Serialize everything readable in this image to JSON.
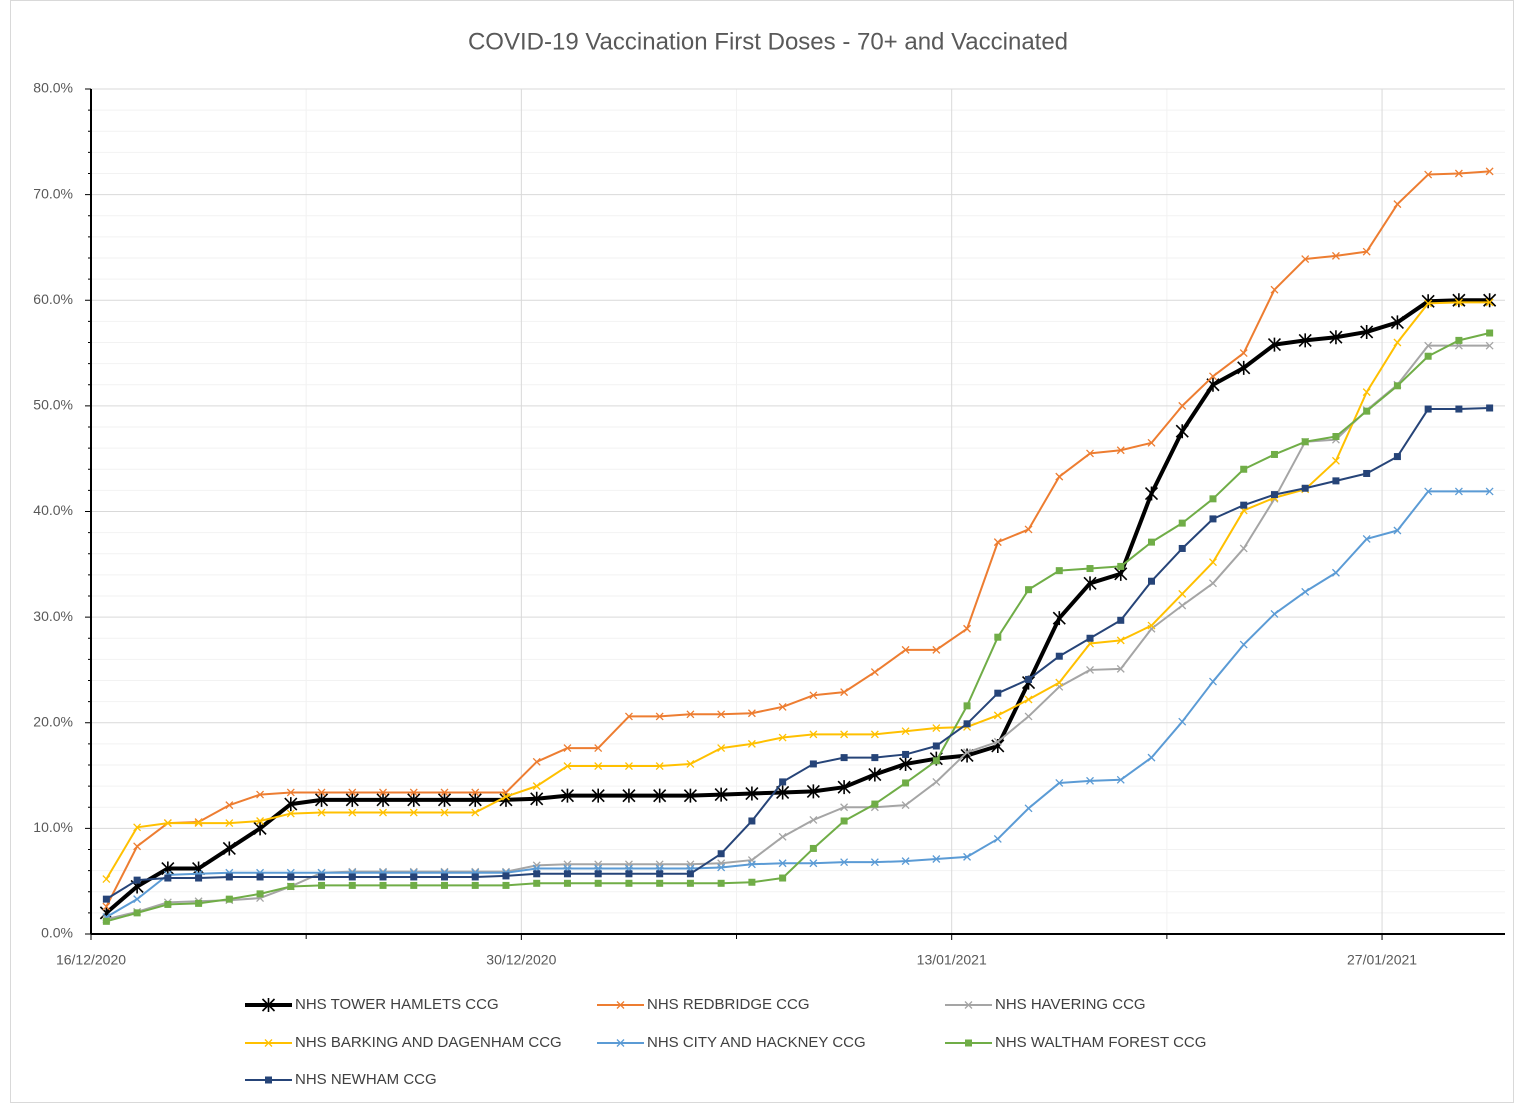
{
  "chart_data": {
    "type": "line",
    "title": "COVID-19 Vaccination First Doses - 70+ and Vaccinated",
    "x": [
      "16/12/2020",
      "17/12/2020",
      "18/12/2020",
      "19/12/2020",
      "20/12/2020",
      "21/12/2020",
      "22/12/2020",
      "23/12/2020",
      "24/12/2020",
      "25/12/2020",
      "26/12/2020",
      "27/12/2020",
      "28/12/2020",
      "29/12/2020",
      "30/12/2020",
      "31/12/2020",
      "01/01/2021",
      "02/01/2021",
      "03/01/2021",
      "04/01/2021",
      "05/01/2021",
      "06/01/2021",
      "07/01/2021",
      "08/01/2021",
      "09/01/2021",
      "10/01/2021",
      "11/01/2021",
      "12/01/2021",
      "13/01/2021",
      "14/01/2021",
      "15/01/2021",
      "16/01/2021",
      "17/01/2021",
      "18/01/2021",
      "19/01/2021",
      "20/01/2021",
      "21/01/2021",
      "22/01/2021",
      "23/01/2021",
      "24/01/2021",
      "25/01/2021",
      "26/01/2021",
      "27/01/2021",
      "28/01/2021",
      "29/01/2021",
      "30/01/2021"
    ],
    "xlim": [
      "16/12/2020",
      "31/01/2021"
    ],
    "xticks": [
      "16/12/2020",
      "30/12/2020",
      "13/01/2021",
      "27/01/2021"
    ],
    "xminorticks": [
      "23/12/2020",
      "06/01/2021",
      "20/01/2021"
    ],
    "ylim": [
      0,
      80
    ],
    "yticks": [
      {
        "value": 0,
        "label": "0.0%"
      },
      {
        "value": 10,
        "label": "10.0%"
      },
      {
        "value": 20,
        "label": "20.0%"
      },
      {
        "value": 30,
        "label": "30.0%"
      },
      {
        "value": 40,
        "label": "40.0%"
      },
      {
        "value": 50,
        "label": "50.0%"
      },
      {
        "value": 60,
        "label": "60.0%"
      },
      {
        "value": 70,
        "label": "70.0%"
      },
      {
        "value": 80,
        "label": "80.0%"
      }
    ],
    "yminorticks": [
      2,
      4,
      6,
      8,
      12,
      14,
      16,
      18,
      22,
      24,
      26,
      28,
      32,
      34,
      36,
      38,
      42,
      44,
      46,
      48,
      52,
      54,
      56,
      58,
      62,
      64,
      66,
      68,
      72,
      74,
      76,
      78
    ],
    "grid": true,
    "legend": "bottom",
    "series": [
      {
        "name": "NHS TOWER HAMLETS CCG",
        "color": "#000000",
        "marker": "star",
        "width": 4,
        "values": [
          2.0,
          4.5,
          6.2,
          6.2,
          8.1,
          10.0,
          12.3,
          12.7,
          12.7,
          12.7,
          12.7,
          12.7,
          12.7,
          12.7,
          12.8,
          13.1,
          13.1,
          13.1,
          13.1,
          13.1,
          13.2,
          13.3,
          13.4,
          13.5,
          13.9,
          15.1,
          16.1,
          16.6,
          16.9,
          17.8,
          23.8,
          29.9,
          33.2,
          34.1,
          41.7,
          47.6,
          52.0,
          53.6,
          55.8,
          56.2,
          56.5,
          57.0,
          57.9,
          59.9,
          60.0,
          60.0
        ]
      },
      {
        "name": "NHS REDBRIDGE CCG",
        "color": "#ED7D31",
        "marker": "x",
        "width": 2,
        "values": [
          2.6,
          8.3,
          10.5,
          10.6,
          12.2,
          13.2,
          13.4,
          13.4,
          13.4,
          13.4,
          13.4,
          13.4,
          13.4,
          13.4,
          16.3,
          17.6,
          17.6,
          20.6,
          20.6,
          20.8,
          20.8,
          20.9,
          21.5,
          22.6,
          22.9,
          24.8,
          26.9,
          26.9,
          28.9,
          37.1,
          38.3,
          43.3,
          45.5,
          45.8,
          46.5,
          50.0,
          52.8,
          55.0,
          61.0,
          63.9,
          64.2,
          64.6,
          69.1,
          71.9,
          72.0,
          72.2
        ]
      },
      {
        "name": "NHS HAVERING CCG",
        "color": "#A5A5A5",
        "marker": "x",
        "width": 2,
        "values": [
          1.4,
          2.1,
          3.0,
          3.1,
          3.2,
          3.4,
          4.5,
          5.8,
          5.9,
          5.9,
          5.9,
          5.9,
          5.9,
          5.9,
          6.5,
          6.6,
          6.6,
          6.6,
          6.6,
          6.6,
          6.7,
          7.0,
          9.2,
          10.8,
          12.0,
          12.0,
          12.2,
          14.4,
          17.2,
          18.2,
          20.6,
          23.4,
          25.0,
          25.1,
          28.9,
          31.1,
          33.2,
          36.5,
          41.2,
          46.6,
          46.8,
          49.6,
          52.0,
          55.7,
          55.7,
          55.7
        ]
      },
      {
        "name": "NHS BARKING AND DAGENHAM CCG",
        "color": "#FFC000",
        "marker": "x",
        "width": 2,
        "values": [
          5.2,
          10.1,
          10.5,
          10.5,
          10.5,
          10.7,
          11.4,
          11.5,
          11.5,
          11.5,
          11.5,
          11.5,
          11.5,
          13.0,
          14.0,
          15.9,
          15.9,
          15.9,
          15.9,
          16.1,
          17.6,
          18.0,
          18.6,
          18.9,
          18.9,
          18.9,
          19.2,
          19.5,
          19.6,
          20.7,
          22.2,
          23.8,
          27.5,
          27.8,
          29.2,
          32.2,
          35.2,
          40.1,
          41.3,
          42.1,
          44.8,
          51.3,
          56.0,
          59.7,
          59.8,
          59.8
        ]
      },
      {
        "name": "NHS CITY AND HACKNEY CCG",
        "color": "#5B9BD5",
        "marker": "x",
        "width": 2,
        "values": [
          1.6,
          3.3,
          5.6,
          5.7,
          5.8,
          5.8,
          5.8,
          5.8,
          5.8,
          5.8,
          5.8,
          5.8,
          5.8,
          5.8,
          6.2,
          6.2,
          6.2,
          6.2,
          6.2,
          6.2,
          6.3,
          6.6,
          6.7,
          6.7,
          6.8,
          6.8,
          6.9,
          7.1,
          7.3,
          9.0,
          11.9,
          14.3,
          14.5,
          14.6,
          16.7,
          20.1,
          23.9,
          27.4,
          30.3,
          32.4,
          34.2,
          37.4,
          38.2,
          41.9,
          41.9,
          41.9
        ]
      },
      {
        "name": "NHS WALTHAM FOREST CCG",
        "color": "#70AD47",
        "marker": "square",
        "width": 2,
        "values": [
          1.2,
          2.0,
          2.8,
          2.9,
          3.3,
          3.8,
          4.5,
          4.6,
          4.6,
          4.6,
          4.6,
          4.6,
          4.6,
          4.6,
          4.8,
          4.8,
          4.8,
          4.8,
          4.8,
          4.8,
          4.8,
          4.9,
          5.3,
          8.1,
          10.7,
          12.3,
          14.3,
          16.4,
          21.6,
          28.1,
          32.6,
          34.4,
          34.6,
          34.8,
          37.1,
          38.9,
          41.2,
          44.0,
          45.4,
          46.6,
          47.1,
          49.5,
          51.9,
          54.7,
          56.2,
          56.9
        ]
      },
      {
        "name": "NHS NEWHAM CCG",
        "color": "#264478",
        "marker": "square",
        "width": 2,
        "values": [
          3.3,
          5.1,
          5.3,
          5.3,
          5.4,
          5.4,
          5.4,
          5.4,
          5.4,
          5.4,
          5.4,
          5.4,
          5.4,
          5.5,
          5.7,
          5.7,
          5.7,
          5.7,
          5.7,
          5.7,
          7.6,
          10.7,
          14.4,
          16.1,
          16.7,
          16.7,
          17.0,
          17.8,
          19.9,
          22.8,
          24.1,
          26.3,
          28.0,
          29.7,
          33.4,
          36.5,
          39.3,
          40.6,
          41.6,
          42.2,
          42.9,
          43.6,
          45.2,
          49.7,
          49.7,
          49.8
        ]
      }
    ]
  }
}
